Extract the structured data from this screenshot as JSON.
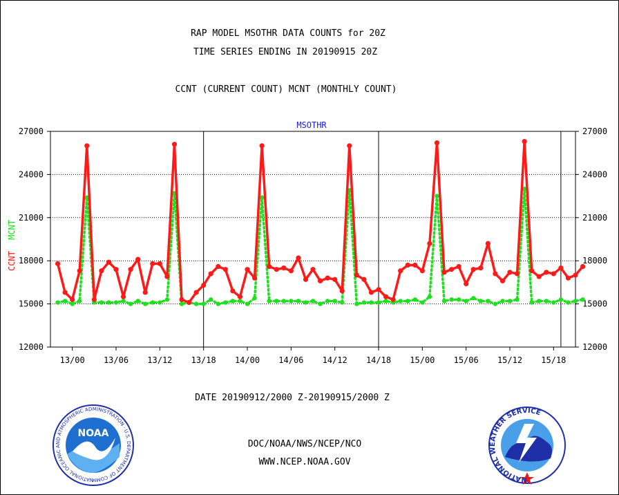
{
  "header": {
    "title_line1": "RAP MODEL MSOTHR DATA COUNTS for 20Z",
    "title_line2": "TIME SERIES ENDING IN 20190915 20Z",
    "subtitle": "CCNT (CURRENT COUNT) MCNT (MONTHLY COUNT)"
  },
  "footer": {
    "date_range": "DATE 20190912/2000 Z-20190915/2000 Z",
    "org_path": "DOC/NOAA/NWS/NCEP/NCO",
    "website": "WWW.NCEP.NOAA.GOV"
  },
  "logos": {
    "noaa_text": "NOAA",
    "noaa_ring_text": "NATIONAL OCEANIC AND ATMOSPHERIC ADMINISTRATION · U.S. DEPARTMENT OF COMMERCE ·",
    "nws_ring_text": "NATIONAL WEATHER SERVICE"
  },
  "colors": {
    "ccnt": "#ff1a1a",
    "mcnt": "#1fe01f",
    "plot_label": "#1a1aff",
    "date_text": "#ff1a1a",
    "footer_text": "#1a1acc"
  },
  "chart_data": {
    "type": "line",
    "title": "MSOTHR",
    "ylabel_left": [
      {
        "text": "CCNT",
        "color": "#ff1a1a"
      },
      {
        "text": "MCNT",
        "color": "#1fe01f"
      }
    ],
    "ylim": [
      12000,
      27000
    ],
    "xlim_hours": [
      -1,
      71
    ],
    "yticks": [
      12000,
      15000,
      18000,
      21000,
      24000,
      27000
    ],
    "ytick_labels": [
      "12000",
      "15000",
      "18000",
      "21000",
      "24000",
      "27000"
    ],
    "gridlines_y": [
      15000,
      18000,
      21000,
      24000,
      27000
    ],
    "xticks_hours": [
      2,
      8,
      14,
      20,
      26,
      32,
      38,
      44,
      50,
      56,
      62,
      68
    ],
    "xtick_labels": [
      "13/00",
      "13/06",
      "13/12",
      "13/18",
      "14/00",
      "14/06",
      "14/12",
      "14/18",
      "15/00",
      "15/06",
      "15/12",
      "15/18"
    ],
    "day_boundaries_hours": [
      20,
      44,
      69
    ],
    "x_start": "2019-09-12 22Z",
    "x_step_hours": 1,
    "series": [
      {
        "name": "CCNT",
        "color": "#ff1a1a",
        "values": [
          17800,
          15800,
          15300,
          17300,
          26000,
          15300,
          17300,
          17900,
          17400,
          15500,
          17400,
          18100,
          15800,
          17800,
          17800,
          16900,
          26100,
          15300,
          15100,
          15800,
          16300,
          17100,
          17600,
          17400,
          15900,
          15500,
          17400,
          16800,
          26000,
          17600,
          17400,
          17500,
          17300,
          18200,
          16700,
          17400,
          16600,
          16800,
          16700,
          15900,
          26000,
          17000,
          16700,
          15800,
          16000,
          15500,
          15300,
          17300,
          17700,
          17700,
          17300,
          19200,
          26200,
          17200,
          17400,
          17600,
          16400,
          17400,
          17500,
          19200,
          17100,
          16600,
          17200,
          17100,
          26300,
          17300,
          16900,
          17200,
          17100,
          17500,
          16800,
          17000,
          17600
        ]
      },
      {
        "name": "MCNT",
        "color": "#1fe01f",
        "values": [
          15100,
          15200,
          15000,
          15200,
          22400,
          15100,
          15100,
          15100,
          15100,
          15200,
          15000,
          15200,
          15000,
          15100,
          15100,
          15300,
          22700,
          15000,
          15100,
          15000,
          15000,
          15300,
          15000,
          15100,
          15200,
          15200,
          15000,
          15400,
          22400,
          15200,
          15200,
          15200,
          15200,
          15200,
          15100,
          15200,
          15000,
          15200,
          15200,
          15100,
          22900,
          15000,
          15100,
          15100,
          15100,
          15200,
          15100,
          15200,
          15200,
          15300,
          15100,
          15500,
          22500,
          15200,
          15300,
          15300,
          15200,
          15400,
          15200,
          15200,
          15000,
          15200,
          15200,
          15300,
          23000,
          15100,
          15200,
          15200,
          15100,
          15300,
          15100,
          15200,
          15300
        ]
      }
    ],
    "grid": true,
    "legend": "none"
  }
}
